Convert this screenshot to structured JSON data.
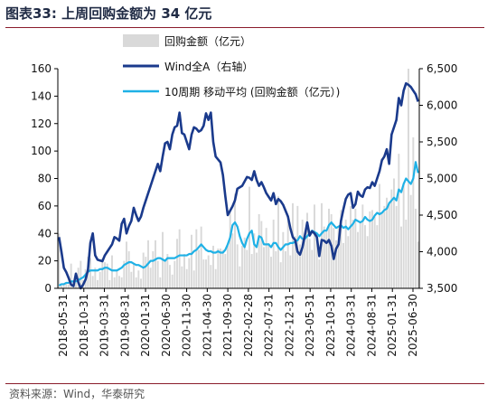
{
  "header": {
    "title": "图表33:  上周回购金额为 34 亿元"
  },
  "footer": {
    "source": "资料来源：Wind，华泰研究"
  },
  "chart_data": {
    "type": "bar+line",
    "title": "图表33:  上周回购金额为 34 亿元",
    "left_axis": {
      "min": 0,
      "max": 160,
      "ticks": [
        "0",
        "20",
        "40",
        "60",
        "80",
        "100",
        "120",
        "140",
        "160"
      ]
    },
    "right_axis": {
      "min": 3500,
      "max": 6500,
      "ticks": [
        "3,500",
        "4,000",
        "4,500",
        "5,000",
        "5,500",
        "6,000",
        "6,500"
      ]
    },
    "x_ticks": [
      "2018-05-31",
      "2018-10-31",
      "2019-03-31",
      "2019-08-31",
      "2020-01-31",
      "2020-06-30",
      "2020-11-30",
      "2021-04-30",
      "2021-09-30",
      "2022-02-28",
      "2022-07-31",
      "2022-12-31",
      "2023-05-31",
      "2023-10-31",
      "2024-03-31",
      "2024-08-31",
      "2025-01-31",
      "2025-06-30"
    ],
    "grid": false,
    "legend_position": "top",
    "series": [
      {
        "name": "回购金额（亿元）",
        "type": "bar",
        "axis": "left",
        "color": "#d9d9d9",
        "values": [
          40,
          2,
          3,
          4,
          3,
          18,
          3,
          4,
          15,
          20,
          6,
          14,
          23,
          22,
          9,
          15,
          6,
          12,
          22,
          19,
          18,
          6,
          24,
          8,
          13,
          9,
          8,
          20,
          34,
          27,
          12,
          18,
          8,
          13,
          7,
          26,
          23,
          35,
          15,
          27,
          35,
          20,
          8,
          41,
          21,
          25,
          17,
          10,
          20,
          36,
          43,
          16,
          25,
          14,
          22,
          39,
          13,
          43,
          28,
          45,
          21,
          21,
          24,
          17,
          31,
          14,
          29,
          29,
          28,
          25,
          31,
          56,
          40,
          69,
          32,
          16,
          31,
          37,
          28,
          74,
          25,
          40,
          26,
          54,
          49,
          30,
          44,
          33,
          23,
          50,
          27,
          67,
          19,
          41,
          27,
          49,
          24,
          62,
          38,
          60,
          32,
          50,
          40,
          55,
          36,
          28,
          61,
          39,
          21,
          62,
          45,
          42,
          58,
          54,
          44,
          35,
          44,
          57,
          33,
          50,
          38,
          60,
          50,
          58,
          41,
          48,
          61,
          46,
          38,
          56,
          57,
          52,
          46,
          76,
          55,
          60,
          66,
          63,
          72,
          80,
          60,
          98,
          45,
          77,
          50,
          160,
          68,
          110,
          58,
          34
        ]
      },
      {
        "name": "Wind全A（右轴）",
        "type": "line",
        "axis": "right",
        "color": "#1a3a8c",
        "values": [
          4200,
          4000,
          3780,
          3720,
          3640,
          3550,
          3530,
          3700,
          3580,
          3500,
          3550,
          3620,
          3750,
          4120,
          4250,
          3950,
          3890,
          3880,
          3870,
          3950,
          4000,
          4050,
          4100,
          4200,
          4180,
          4150,
          4380,
          4450,
          4250,
          4350,
          4420,
          4600,
          4500,
          4420,
          4480,
          4600,
          4700,
          4800,
          4900,
          5000,
          5100,
          5200,
          5100,
          5300,
          5480,
          5500,
          5400,
          5600,
          5700,
          5720,
          5900,
          5620,
          5600,
          5500,
          5400,
          5600,
          5700,
          5680,
          5640,
          5660,
          5720,
          5890,
          5800,
          5900,
          5500,
          5300,
          5260,
          5220,
          5050,
          4760,
          4500,
          4560,
          4620,
          4700,
          4860,
          4880,
          4900,
          4960,
          5020,
          5010,
          4980,
          5100,
          4980,
          4900,
          4950,
          4880,
          4800,
          4750,
          4700,
          4800,
          4650,
          4720,
          4690,
          4640,
          4560,
          4480,
          4320,
          4200,
          4160,
          4000,
          3960,
          4060,
          4220,
          4400,
          4220,
          4280,
          4250,
          4200,
          3940,
          4160,
          4150,
          4120,
          4160,
          4080,
          3900,
          4040,
          4100,
          4420,
          4580,
          4720,
          4780,
          4800,
          4600,
          4650,
          4820,
          4770,
          4750,
          4850,
          4880,
          4870,
          4950,
          4900,
          5000,
          5100,
          5250,
          5300,
          5400,
          5200,
          5600,
          5700,
          5800,
          6100,
          6000,
          6200,
          6300,
          6280,
          6250,
          6200,
          6150,
          6050
        ]
      },
      {
        "name": "10周期 移动平均 (回购金额（亿元）)",
        "type": "line",
        "axis": "left",
        "color": "#1fb1e6",
        "values": [
          2,
          3,
          3,
          4,
          4,
          5,
          5,
          5,
          6,
          7,
          8,
          10,
          12,
          13,
          13,
          13,
          13,
          14,
          14,
          15,
          15,
          14,
          13,
          13,
          13,
          14,
          15,
          17,
          18,
          19,
          19,
          18,
          17,
          17,
          16,
          15,
          16,
          18,
          20,
          20,
          21,
          22,
          22,
          21,
          20,
          22,
          22,
          22,
          22,
          23,
          24,
          24,
          24,
          24,
          25,
          25,
          27,
          28,
          30,
          32,
          30,
          28,
          27,
          27,
          26,
          26,
          27,
          26,
          26,
          28,
          32,
          37,
          46,
          48,
          45,
          38,
          33,
          30,
          36,
          40,
          42,
          32,
          30,
          38,
          37,
          32,
          32,
          32,
          30,
          33,
          33,
          30,
          28,
          30,
          32,
          32,
          33,
          33,
          34,
          35,
          38,
          36,
          36,
          38,
          40,
          42,
          41,
          40,
          38,
          40,
          42,
          42,
          46,
          48,
          46,
          44,
          45,
          46,
          44,
          45,
          43,
          45,
          47,
          50,
          49,
          48,
          49,
          52,
          50,
          49,
          50,
          53,
          55,
          54,
          55,
          57,
          58,
          62,
          64,
          66,
          64,
          72,
          70,
          76,
          80,
          78,
          76,
          80,
          92,
          84
        ]
      }
    ]
  }
}
